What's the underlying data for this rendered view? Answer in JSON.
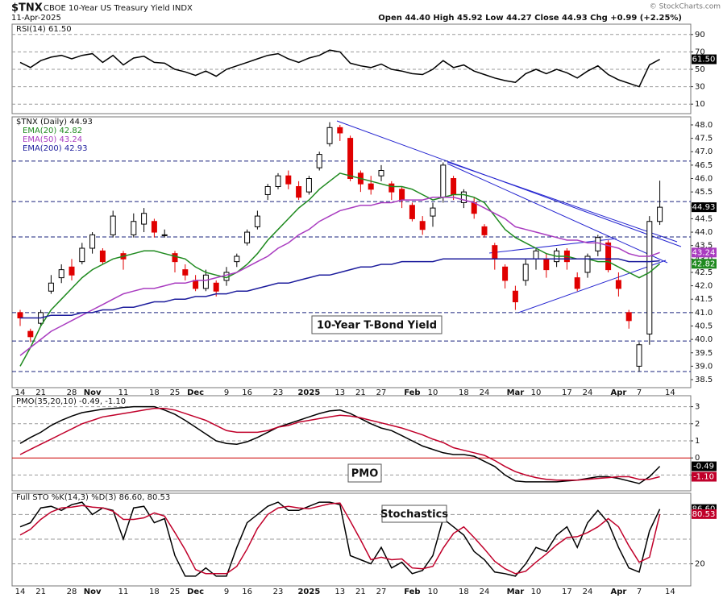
{
  "header": {
    "symbol": "$TNX",
    "name": "CBOE 10-Year US Treasury Yield INDX",
    "date": "11-Apr-2025",
    "quote": "Open 44.40  High 45.92  Low 44.27  Close 44.93  Chg +0.99 (+2.25%)",
    "credit": "© StockCharts.com"
  },
  "chart_data": [
    {
      "type": "line",
      "title": "RSI(14) 61.50",
      "ylim": [
        0,
        100
      ],
      "yticks": [
        10,
        30,
        50,
        70,
        90
      ],
      "grid": true,
      "series": [
        {
          "color": "#000000",
          "tag_label": "61.50",
          "values": [
            58,
            52,
            60,
            64,
            66,
            62,
            66,
            68,
            58,
            66,
            55,
            63,
            65,
            58,
            57,
            50,
            47,
            43,
            48,
            42,
            50,
            54,
            58,
            62,
            66,
            68,
            62,
            58,
            63,
            66,
            72,
            70,
            57,
            54,
            52,
            56,
            50,
            48,
            45,
            44,
            50,
            60,
            52,
            55,
            48,
            44,
            40,
            37,
            35,
            45,
            50,
            45,
            50,
            46,
            40,
            48,
            54,
            44,
            38,
            34,
            30,
            55,
            61.5,
            null
          ]
        }
      ]
    },
    {
      "type": "candlestick",
      "title": "$TNX (Daily) 44.93",
      "close_label": "44.93",
      "annotation": "10-Year T-Bond Yield",
      "ylim": [
        38.2,
        48.3
      ],
      "grid": false,
      "up_color": "#000000",
      "down_color": "#e00000",
      "level_color": "#1a237e",
      "yticks": [
        38.5,
        {
          "value": 39,
          "label": "39.0"
        },
        39.5,
        {
          "value": 40,
          "label": "40.0"
        },
        40.5,
        {
          "value": 41,
          "label": "41.0"
        },
        41.5,
        {
          "value": 42,
          "label": "42.0"
        },
        42.5,
        {
          "value": 43,
          "label": "43.0"
        },
        43.5,
        {
          "value": 44,
          "label": "44.0"
        },
        44.5,
        {
          "value": 45,
          "label": "45.0"
        },
        45.5,
        {
          "value": 46,
          "label": "46.0"
        },
        46.5,
        {
          "value": 47,
          "label": "47.0"
        },
        47.5,
        {
          "value": 48,
          "label": "48.0"
        }
      ],
      "levels": [
        46.65,
        45.14,
        43.82,
        41.0,
        39.94,
        38.8
      ],
      "categories": [
        "14",
        null,
        "21",
        null,
        null,
        "28",
        null,
        "Nov",
        null,
        null,
        "11",
        null,
        null,
        "18",
        null,
        "25",
        null,
        "Dec",
        null,
        null,
        "9",
        null,
        "16",
        null,
        null,
        "23",
        null,
        null,
        "2025",
        null,
        null,
        "13",
        null,
        "21",
        null,
        "27",
        null,
        null,
        "Feb",
        null,
        "10",
        null,
        null,
        "18",
        null,
        "24",
        null,
        null,
        "Mar",
        null,
        "10",
        null,
        null,
        "17",
        null,
        "24",
        null,
        null,
        "Apr",
        null,
        "7",
        null,
        null,
        "14"
      ],
      "open": [
        41.0,
        40.3,
        40.6,
        41.8,
        42.3,
        42.7,
        42.9,
        43.4,
        43.3,
        43.9,
        43.2,
        43.9,
        44.3,
        44.4,
        43.9,
        43.2,
        42.6,
        42.2,
        41.9,
        42.1,
        42.2,
        42.9,
        43.6,
        44.2,
        45.4,
        45.7,
        46.1,
        45.7,
        45.5,
        46.4,
        47.3,
        47.9,
        47.5,
        46.2,
        45.8,
        46.1,
        45.8,
        45.6,
        45.0,
        44.4,
        44.6,
        45.3,
        46.0,
        45.1,
        45.1,
        44.2,
        43.5,
        42.7,
        41.8,
        42.2,
        43.0,
        43.0,
        42.9,
        43.3,
        42.3,
        42.5,
        43.3,
        43.6,
        42.2,
        41.0,
        39.0,
        40.2,
        44.4,
        null
      ],
      "high": [
        41.1,
        40.4,
        41.1,
        42.4,
        42.8,
        43.0,
        43.6,
        44.0,
        43.4,
        44.8,
        43.3,
        44.7,
        44.9,
        44.5,
        44.1,
        43.3,
        42.8,
        42.4,
        42.6,
        42.2,
        42.7,
        43.2,
        44.1,
        44.8,
        45.8,
        46.2,
        46.3,
        45.9,
        46.1,
        47.0,
        48.1,
        48.0,
        47.6,
        46.3,
        46.1,
        46.5,
        45.9,
        45.7,
        45.1,
        44.6,
        45.1,
        46.6,
        46.1,
        45.6,
        45.3,
        44.3,
        43.6,
        42.8,
        42.0,
        43.0,
        43.4,
        43.2,
        43.4,
        43.4,
        42.5,
        43.2,
        43.9,
        43.7,
        42.5,
        41.1,
        39.9,
        44.6,
        45.92,
        null
      ],
      "low": [
        40.5,
        39.9,
        40.5,
        41.7,
        42.1,
        42.2,
        42.8,
        43.2,
        42.8,
        43.8,
        42.6,
        43.8,
        44.0,
        43.8,
        43.8,
        42.5,
        42.2,
        41.8,
        41.8,
        41.6,
        42.0,
        42.7,
        43.5,
        44.1,
        45.2,
        45.6,
        45.6,
        45.2,
        45.4,
        46.3,
        47.2,
        47.4,
        45.9,
        45.5,
        45.4,
        45.9,
        45.2,
        44.9,
        44.4,
        43.9,
        44.2,
        45.1,
        45.2,
        44.9,
        44.5,
        43.8,
        42.6,
        41.9,
        41.1,
        42.0,
        42.6,
        42.3,
        42.7,
        42.6,
        41.8,
        42.3,
        43.1,
        42.5,
        41.6,
        40.4,
        38.8,
        39.8,
        44.27,
        null
      ],
      "close": [
        40.8,
        40.1,
        41.0,
        42.1,
        42.6,
        42.4,
        43.4,
        43.9,
        42.9,
        44.6,
        43.0,
        44.4,
        44.7,
        44.0,
        43.9,
        42.9,
        42.4,
        41.9,
        42.4,
        41.8,
        42.5,
        43.1,
        44.0,
        44.6,
        45.7,
        46.1,
        45.8,
        45.3,
        46.0,
        46.9,
        47.9,
        47.7,
        46.0,
        45.8,
        45.6,
        46.3,
        45.5,
        45.2,
        44.5,
        44.1,
        44.9,
        46.5,
        45.4,
        45.5,
        44.7,
        43.9,
        43.0,
        42.2,
        41.4,
        42.8,
        43.3,
        42.6,
        43.3,
        42.9,
        41.9,
        43.1,
        43.8,
        42.6,
        41.9,
        40.7,
        39.8,
        44.4,
        44.93,
        null
      ],
      "series": [
        {
          "name": "EMA(20) 42.82",
          "color": "#1f8a1f",
          "tag_label": "42.82",
          "values": [
            39.0,
            39.7,
            40.5,
            41.1,
            41.5,
            41.9,
            42.3,
            42.6,
            42.8,
            43.0,
            43.1,
            43.2,
            43.3,
            43.3,
            43.2,
            43.1,
            43.0,
            42.7,
            42.5,
            42.4,
            42.3,
            42.5,
            42.8,
            43.2,
            43.7,
            44.1,
            44.5,
            44.9,
            45.2,
            45.6,
            45.9,
            46.2,
            46.1,
            46.0,
            45.9,
            45.8,
            45.7,
            45.7,
            45.6,
            45.4,
            45.2,
            45.3,
            45.4,
            45.4,
            45.3,
            45.1,
            44.6,
            44.1,
            43.8,
            43.6,
            43.4,
            43.2,
            43.1,
            43.1,
            43.0,
            43.0,
            42.9,
            42.9,
            42.7,
            42.5,
            42.3,
            42.5,
            42.82,
            null
          ]
        },
        {
          "name": "EMA(50) 43.24",
          "color": "#a93cc0",
          "tag_label": "43.24",
          "values": [
            39.4,
            39.7,
            40.0,
            40.3,
            40.5,
            40.7,
            40.9,
            41.1,
            41.3,
            41.5,
            41.7,
            41.8,
            41.9,
            41.9,
            42.0,
            42.1,
            42.1,
            42.2,
            42.2,
            42.3,
            42.4,
            42.5,
            42.7,
            42.9,
            43.1,
            43.4,
            43.6,
            43.9,
            44.1,
            44.4,
            44.6,
            44.8,
            44.9,
            45.0,
            45.0,
            45.1,
            45.1,
            45.2,
            45.2,
            45.2,
            45.3,
            45.3,
            45.3,
            45.2,
            45.1,
            44.9,
            44.7,
            44.5,
            44.2,
            44.1,
            44.0,
            43.9,
            43.8,
            43.7,
            43.7,
            43.6,
            43.6,
            43.5,
            43.4,
            43.2,
            43.1,
            43.1,
            43.24,
            null
          ]
        },
        {
          "name": "EMA(200) 42.93",
          "color": "#1c1c9c",
          "values": [
            40.8,
            40.8,
            40.8,
            40.9,
            40.9,
            40.9,
            41.0,
            41.0,
            41.1,
            41.1,
            41.2,
            41.2,
            41.3,
            41.4,
            41.4,
            41.5,
            41.5,
            41.6,
            41.6,
            41.7,
            41.7,
            41.8,
            41.8,
            41.9,
            42.0,
            42.1,
            42.1,
            42.2,
            42.3,
            42.4,
            42.4,
            42.5,
            42.6,
            42.7,
            42.7,
            42.8,
            42.8,
            42.9,
            42.9,
            42.9,
            42.9,
            43.0,
            43.0,
            43.0,
            43.0,
            43.0,
            43.0,
            43.0,
            43.0,
            43.0,
            43.0,
            43.0,
            43.0,
            43.0,
            43.0,
            43.0,
            43.0,
            43.0,
            43.0,
            42.9,
            42.9,
            42.9,
            42.93,
            null
          ]
        }
      ]
    },
    {
      "type": "line",
      "title": "PMO(35,20,10) -0.49, -1.10",
      "annotation": "PMO",
      "ylim": [
        -1.5,
        3.5
      ],
      "yticks": [
        -1,
        0,
        1,
        2,
        3
      ],
      "grid": true,
      "zero_color": "#cc0000",
      "series": [
        {
          "color": "#000000",
          "tag_label": "-0.49",
          "values": [
            0.85,
            1.2,
            1.5,
            1.9,
            2.2,
            2.45,
            2.65,
            2.75,
            2.85,
            2.9,
            2.95,
            3.0,
            3.0,
            3.0,
            2.8,
            2.55,
            2.2,
            1.8,
            1.4,
            1.0,
            0.85,
            0.8,
            0.95,
            1.2,
            1.5,
            1.8,
            2.0,
            2.2,
            2.4,
            2.6,
            2.75,
            2.8,
            2.6,
            2.3,
            2.0,
            1.75,
            1.6,
            1.3,
            1.0,
            0.7,
            0.5,
            0.3,
            0.2,
            0.2,
            0.1,
            -0.2,
            -0.5,
            -1.0,
            -1.35,
            -1.4,
            -1.4,
            -1.4,
            -1.4,
            -1.35,
            -1.3,
            -1.2,
            -1.1,
            -1.1,
            -1.2,
            -1.35,
            -1.5,
            -1.1,
            -0.49,
            null
          ]
        },
        {
          "color": "#c0002a",
          "tag_label": "-1.10",
          "values": [
            0.2,
            0.5,
            0.8,
            1.1,
            1.4,
            1.7,
            2.0,
            2.2,
            2.4,
            2.5,
            2.6,
            2.7,
            2.8,
            2.9,
            2.9,
            2.8,
            2.6,
            2.4,
            2.2,
            1.9,
            1.6,
            1.5,
            1.5,
            1.5,
            1.6,
            1.8,
            1.9,
            2.1,
            2.2,
            2.3,
            2.4,
            2.5,
            2.45,
            2.35,
            2.2,
            2.05,
            1.9,
            1.75,
            1.55,
            1.35,
            1.1,
            0.9,
            0.6,
            0.45,
            0.3,
            0.15,
            -0.15,
            -0.5,
            -0.8,
            -1.0,
            -1.15,
            -1.25,
            -1.3,
            -1.3,
            -1.3,
            -1.25,
            -1.2,
            -1.15,
            -1.1,
            -1.1,
            -1.25,
            -1.25,
            -1.1,
            null
          ]
        }
      ]
    },
    {
      "type": "line",
      "title": "Full STO %K(14,3) %D(3) 86.60, 80.53",
      "annotation": "Stochastics",
      "ylim": [
        0,
        100
      ],
      "yticks": [
        20
      ],
      "grid": true,
      "levels": [
        50,
        80
      ],
      "level_color": "#999999",
      "categories": [
        "14",
        null,
        "21",
        null,
        null,
        "28",
        null,
        "Nov",
        null,
        null,
        "11",
        null,
        null,
        "18",
        null,
        "25",
        null,
        "Dec",
        null,
        null,
        "9",
        null,
        "16",
        null,
        null,
        "23",
        null,
        null,
        "2025",
        null,
        null,
        "13",
        null,
        "21",
        null,
        "27",
        null,
        null,
        "Feb",
        null,
        "10",
        null,
        null,
        "18",
        null,
        "24",
        null,
        null,
        "Mar",
        null,
        "10",
        null,
        null,
        "17",
        null,
        "24",
        null,
        null,
        "Apr",
        null,
        "7",
        null,
        null,
        "14"
      ],
      "series": [
        {
          "color": "#000000",
          "tag_label": "86.60",
          "values": [
            65,
            70,
            88,
            90,
            85,
            92,
            95,
            80,
            88,
            85,
            50,
            88,
            90,
            70,
            75,
            30,
            5,
            5,
            15,
            5,
            5,
            40,
            70,
            80,
            90,
            95,
            85,
            85,
            90,
            95,
            95,
            92,
            30,
            25,
            20,
            40,
            15,
            22,
            8,
            12,
            30,
            75,
            65,
            55,
            35,
            25,
            10,
            8,
            5,
            20,
            40,
            35,
            55,
            65,
            40,
            70,
            85,
            70,
            40,
            15,
            10,
            60,
            86.6,
            null
          ]
        },
        {
          "color": "#c0002a",
          "tag_label": "80.53",
          "values": [
            55,
            62,
            74,
            83,
            88,
            89,
            91,
            89,
            88,
            84,
            74,
            74,
            76,
            82,
            78,
            58,
            37,
            13,
            8,
            8,
            8,
            17,
            38,
            63,
            80,
            88,
            90,
            88,
            87,
            90,
            93,
            94,
            72,
            49,
            25,
            28,
            25,
            26,
            15,
            14,
            17,
            39,
            57,
            65,
            52,
            38,
            23,
            14,
            8,
            11,
            22,
            32,
            43,
            52,
            53,
            58,
            65,
            75,
            65,
            42,
            22,
            28,
            80.53,
            null
          ]
        }
      ]
    }
  ]
}
